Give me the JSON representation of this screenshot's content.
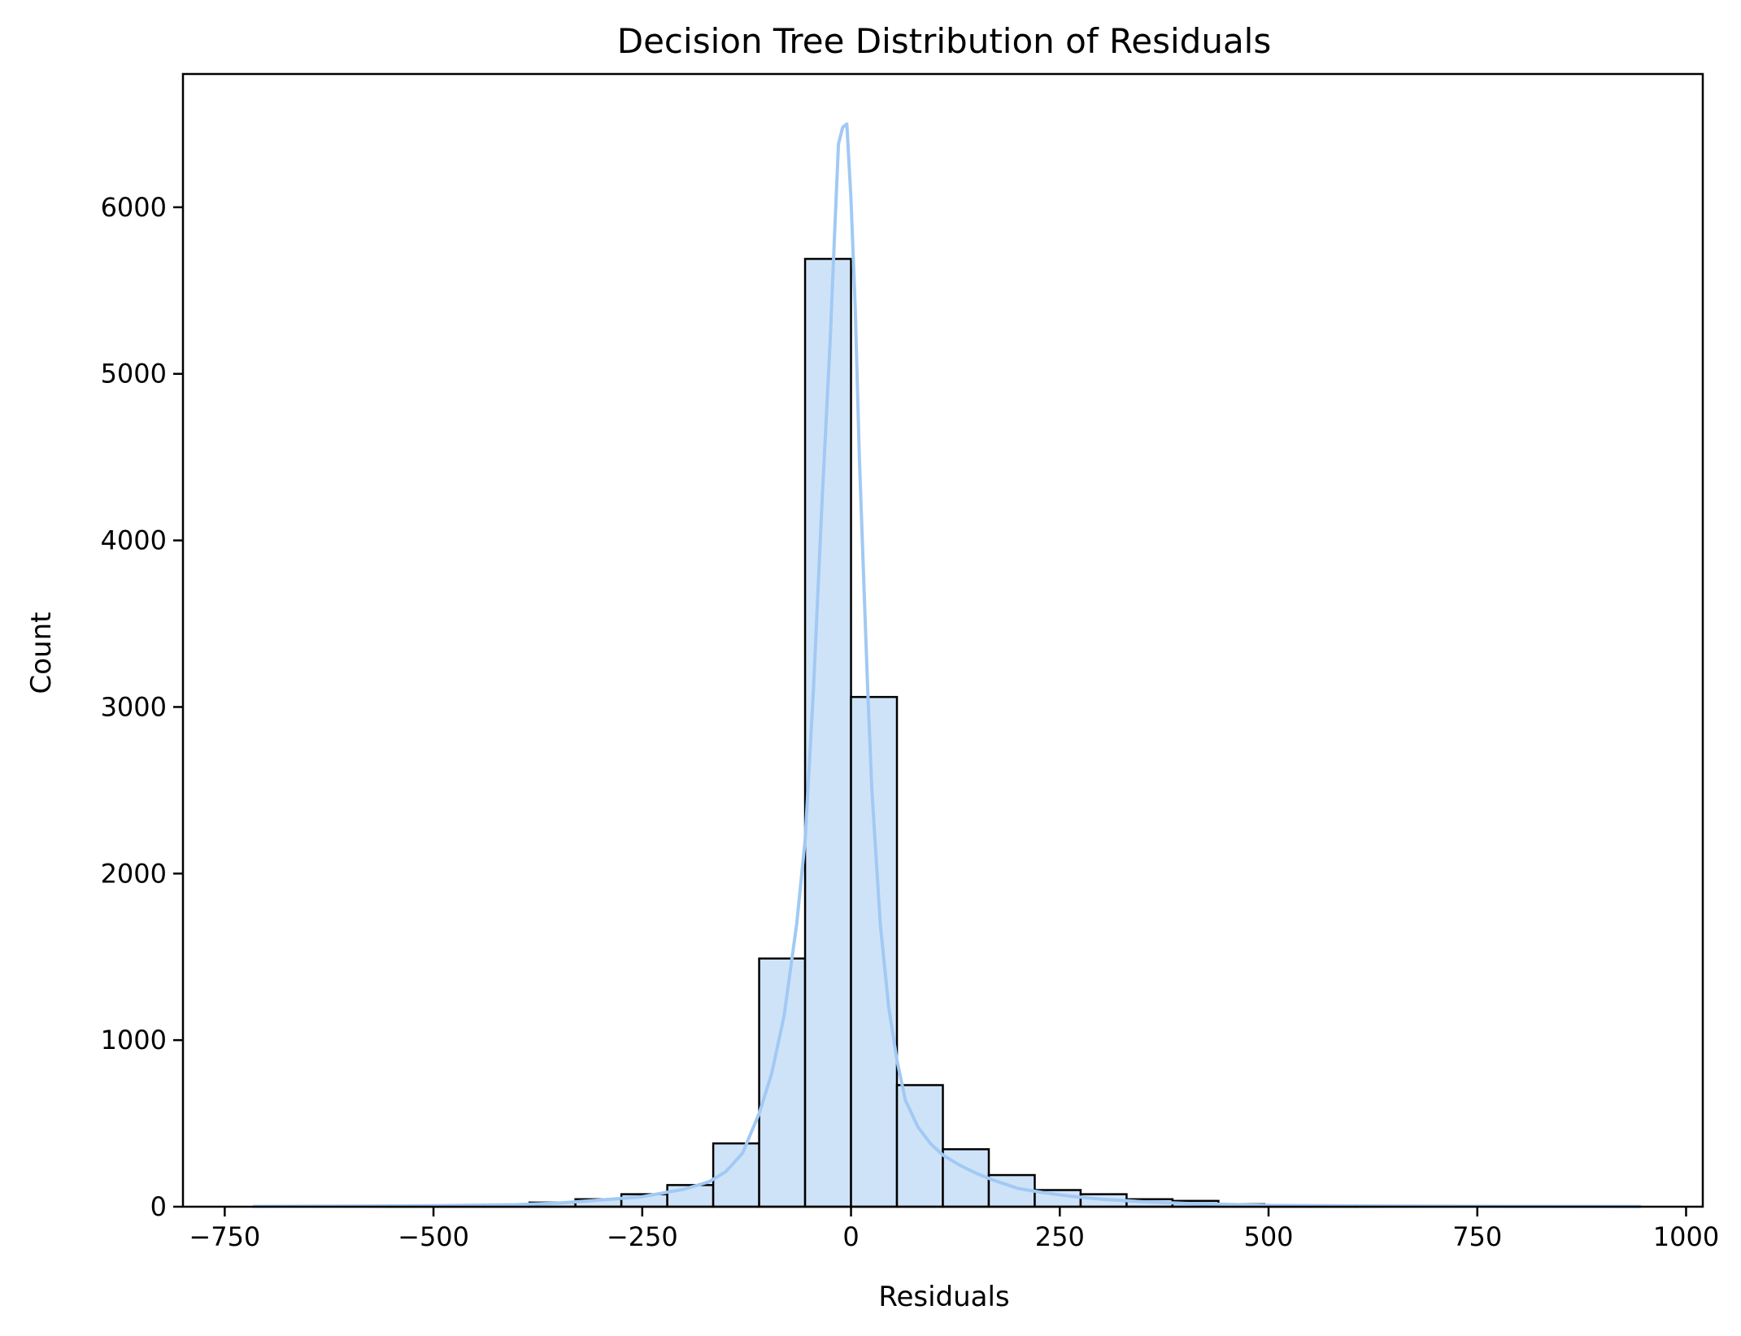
{
  "chart_data": {
    "type": "bar",
    "subtype": "histogram",
    "title": "Decision Tree Distribution of Residuals",
    "xlabel": "Residuals",
    "ylabel": "Count",
    "xlim": [
      -800,
      1020
    ],
    "ylim": [
      0,
      6800
    ],
    "grid": false,
    "legend": null,
    "xticks": [
      -750,
      -500,
      -250,
      0,
      250,
      500,
      750,
      1000
    ],
    "xtick_labels": [
      "−750",
      "−500",
      "−250",
      "0",
      "250",
      "500",
      "750",
      "1000"
    ],
    "yticks": [
      0,
      1000,
      2000,
      3000,
      4000,
      5000,
      6000
    ],
    "ytick_labels": [
      "0",
      "1000",
      "2000",
      "3000",
      "4000",
      "5000",
      "6000"
    ],
    "bins": [
      {
        "x0": -715,
        "x1": -660,
        "count": 1
      },
      {
        "x0": -660,
        "x1": -605,
        "count": 1
      },
      {
        "x0": -605,
        "x1": -550,
        "count": 2
      },
      {
        "x0": -550,
        "x1": -495,
        "count": 4
      },
      {
        "x0": -495,
        "x1": -440,
        "count": 6
      },
      {
        "x0": -440,
        "x1": -385,
        "count": 10
      },
      {
        "x0": -385,
        "x1": -330,
        "count": 25
      },
      {
        "x0": -330,
        "x1": -275,
        "count": 45
      },
      {
        "x0": -275,
        "x1": -220,
        "count": 75
      },
      {
        "x0": -220,
        "x1": -165,
        "count": 130
      },
      {
        "x0": -165,
        "x1": -110,
        "count": 380
      },
      {
        "x0": -110,
        "x1": -55,
        "count": 1490
      },
      {
        "x0": -55,
        "x1": 0,
        "count": 5690
      },
      {
        "x0": 0,
        "x1": 55,
        "count": 3060
      },
      {
        "x0": 55,
        "x1": 110,
        "count": 730
      },
      {
        "x0": 110,
        "x1": 165,
        "count": 345
      },
      {
        "x0": 165,
        "x1": 220,
        "count": 190
      },
      {
        "x0": 220,
        "x1": 275,
        "count": 100
      },
      {
        "x0": 275,
        "x1": 330,
        "count": 75
      },
      {
        "x0": 330,
        "x1": 385,
        "count": 45
      },
      {
        "x0": 385,
        "x1": 440,
        "count": 35
      },
      {
        "x0": 440,
        "x1": 495,
        "count": 15
      },
      {
        "x0": 495,
        "x1": 550,
        "count": 8
      },
      {
        "x0": 550,
        "x1": 605,
        "count": 5
      },
      {
        "x0": 605,
        "x1": 660,
        "count": 4
      },
      {
        "x0": 660,
        "x1": 715,
        "count": 3
      },
      {
        "x0": 715,
        "x1": 770,
        "count": 2
      },
      {
        "x0": 770,
        "x1": 825,
        "count": 2
      },
      {
        "x0": 825,
        "x1": 880,
        "count": 1
      },
      {
        "x0": 880,
        "x1": 945,
        "count": 1
      }
    ],
    "kde": {
      "x": [
        -715,
        -600,
        -500,
        -400,
        -350,
        -300,
        -250,
        -200,
        -170,
        -150,
        -130,
        -110,
        -95,
        -80,
        -65,
        -55,
        -45,
        -35,
        -25,
        -20,
        -15,
        -10,
        -5,
        0,
        5,
        10,
        15,
        20,
        25,
        35,
        45,
        55,
        65,
        80,
        95,
        110,
        130,
        150,
        170,
        200,
        230,
        260,
        300,
        350,
        400,
        450,
        500,
        600,
        700,
        800,
        945
      ],
      "y": [
        2,
        4,
        6,
        12,
        22,
        40,
        60,
        105,
        150,
        210,
        320,
        560,
        800,
        1150,
        1700,
        2200,
        3100,
        4200,
        5200,
        5800,
        6380,
        6480,
        6500,
        6050,
        5400,
        4500,
        3800,
        3100,
        2500,
        1700,
        1200,
        880,
        640,
        480,
        380,
        310,
        250,
        200,
        160,
        110,
        85,
        65,
        45,
        30,
        20,
        14,
        8,
        5,
        3,
        2,
        1
      ]
    },
    "colors": {
      "bar_fill": "#cfe3f8",
      "bar_edge": "#000000",
      "kde_line": "#a1c9f4"
    }
  }
}
